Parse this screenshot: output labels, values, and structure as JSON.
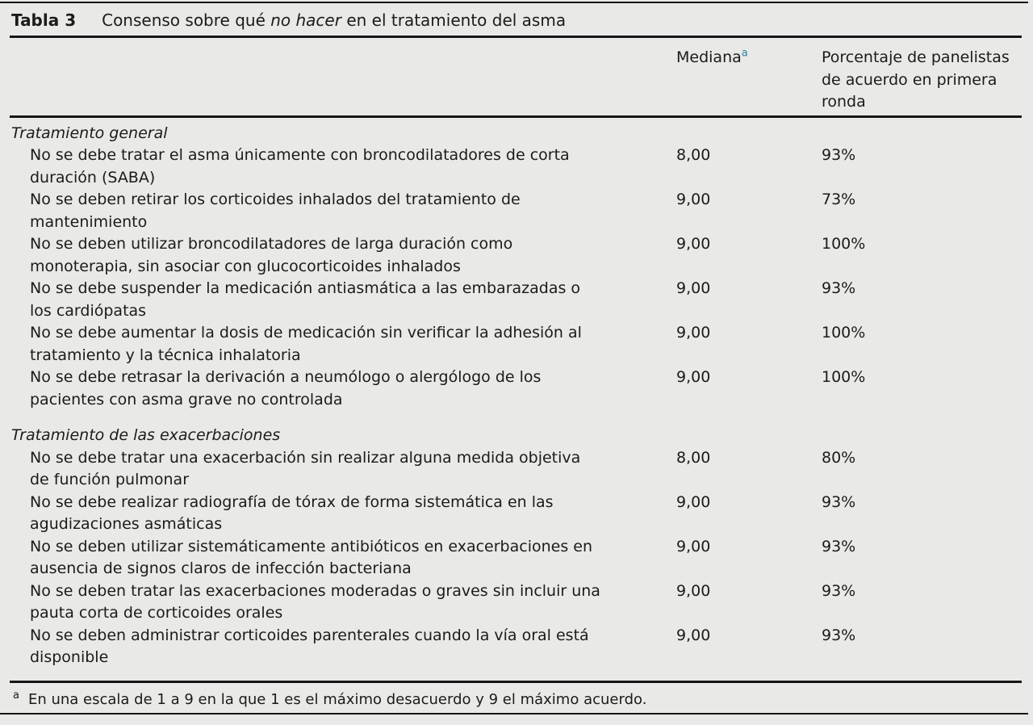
{
  "table": {
    "label": "Tabla 3",
    "title": {
      "prefix": "Consenso sobre qué ",
      "italic": "no hacer",
      "suffix": " en el tratamiento del asma"
    },
    "columns": {
      "mediana": "Mediana",
      "mediana_footnote_marker": "a",
      "porcentaje": "Porcentaje de panelistas\nde acuerdo en primera\nronda"
    },
    "sections": [
      {
        "header": "Tratamiento general",
        "rows": [
          {
            "statement": "No se debe tratar el asma únicamente con broncodilatadores de corta\nduración (SABA)",
            "mediana": "8,00",
            "porcentaje": "93%"
          },
          {
            "statement": "No se deben retirar los corticoides inhalados del tratamiento de\nmantenimiento",
            "mediana": "9,00",
            "porcentaje": "73%"
          },
          {
            "statement": "No se deben utilizar broncodilatadores de larga duración como\nmonoterapia, sin asociar con glucocorticoides inhalados",
            "mediana": "9,00",
            "porcentaje": "100%"
          },
          {
            "statement": "No se debe suspender la medicación antiasmática a las embarazadas o\nlos cardiópatas",
            "mediana": "9,00",
            "porcentaje": "93%"
          },
          {
            "statement": "No se debe aumentar la dosis de medicación sin verificar la adhesión al\ntratamiento y la técnica inhalatoria",
            "mediana": "9,00",
            "porcentaje": "100%"
          },
          {
            "statement": "No se debe retrasar la derivación a neumólogo o alergólogo de los\npacientes con asma grave no controlada",
            "mediana": "9,00",
            "porcentaje": "100%"
          }
        ]
      },
      {
        "header": "Tratamiento de las exacerbaciones",
        "rows": [
          {
            "statement": "No se debe tratar una exacerbación sin realizar alguna medida objetiva\nde función pulmonar",
            "mediana": "8,00",
            "porcentaje": "80%"
          },
          {
            "statement": "No se debe realizar radiografía de tórax de forma sistemática en las\nagudizaciones asmáticas",
            "mediana": "9,00",
            "porcentaje": "93%"
          },
          {
            "statement": "No se deben utilizar sistemáticamente antibióticos en exacerbaciones en\nausencia de signos claros de infección bacteriana",
            "mediana": "9,00",
            "porcentaje": "93%"
          },
          {
            "statement": "No se deben tratar las exacerbaciones moderadas o graves sin incluir una\npauta corta de corticoides orales",
            "mediana": "9,00",
            "porcentaje": "93%"
          },
          {
            "statement": "No se deben administrar corticoides parenterales cuando la vía oral está\ndisponible",
            "mediana": "9,00",
            "porcentaje": "93%"
          }
        ]
      }
    ],
    "footnote": {
      "marker": "a",
      "text": "En una escala de 1 a 9 en la que 1 es el máximo desacuerdo y 9 el máximo acuerdo."
    },
    "colors": {
      "background": "#e9e9e8",
      "text": "#1b1b19",
      "rule": "#161616",
      "footnote_marker_accent": "#3080a8"
    }
  }
}
